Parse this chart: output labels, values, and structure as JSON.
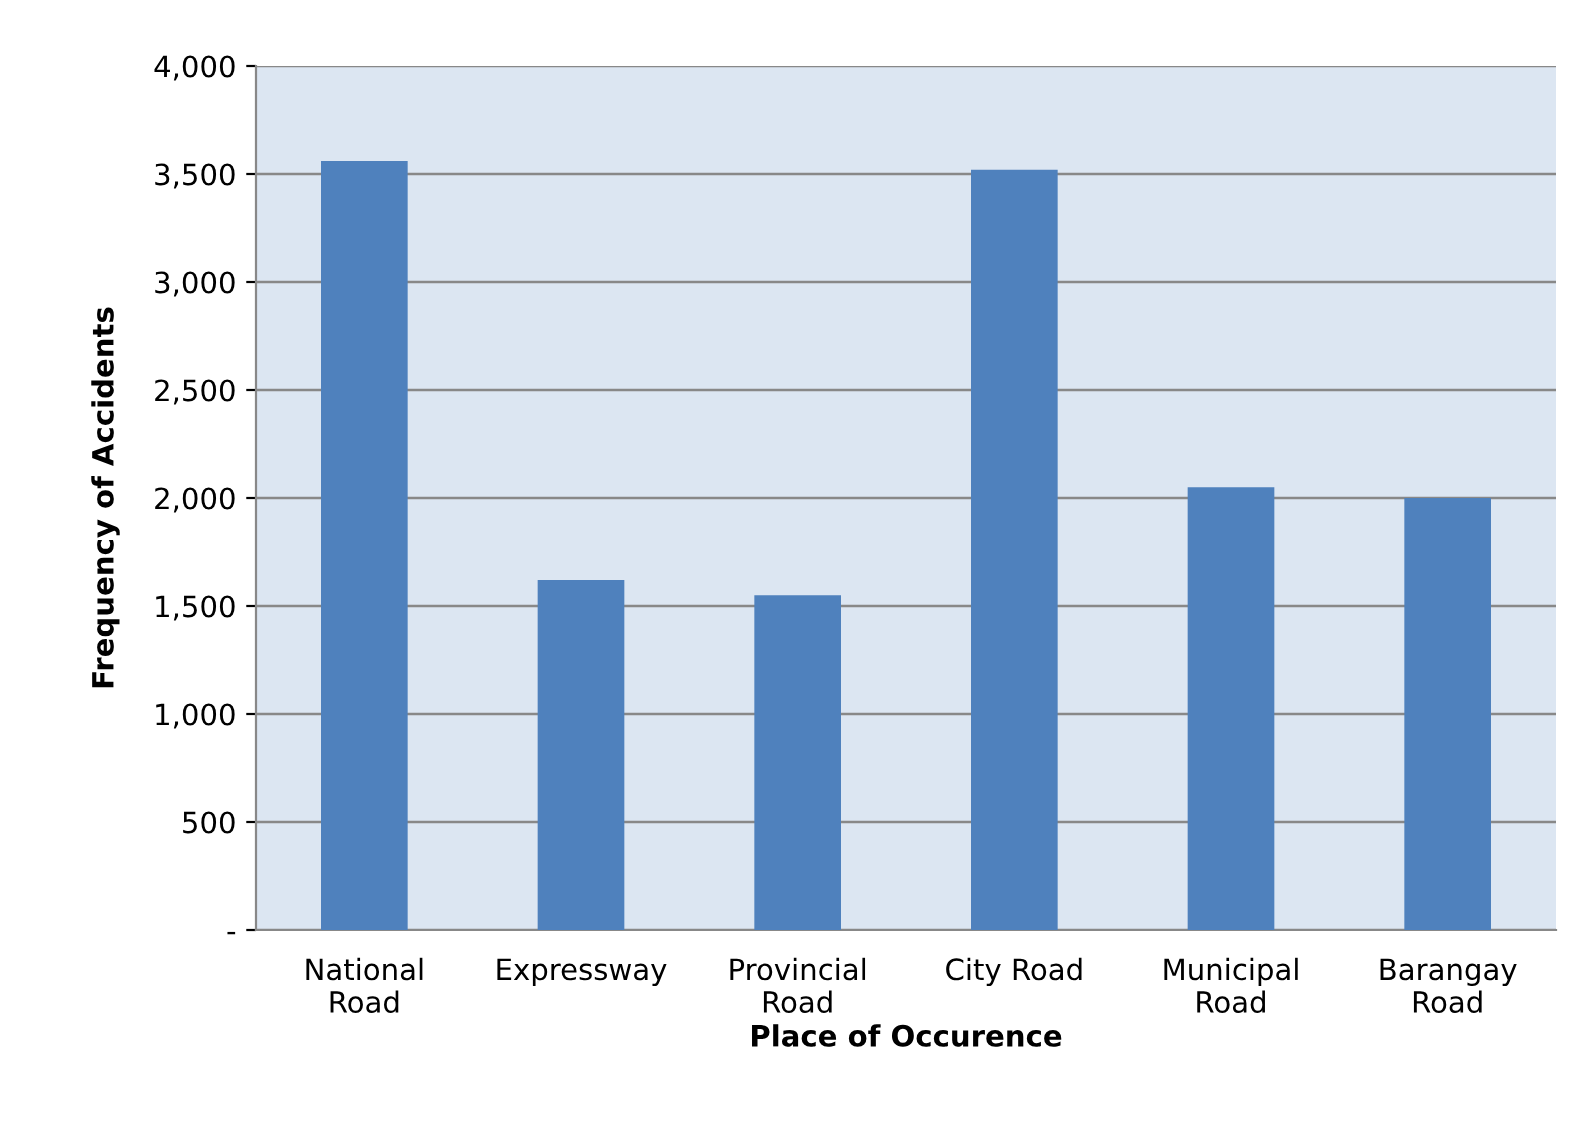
{
  "chart_data": {
    "type": "bar",
    "xlabel": "Place of Occurence",
    "ylabel": "Frequency of Accidents",
    "categories": [
      "National Road",
      "Expressway",
      "Provincial Road",
      "City Road",
      "Municipal Road",
      "Barangay Road"
    ],
    "values": [
      3560,
      1620,
      1550,
      3520,
      2050,
      2000
    ],
    "color": "#4f81bd",
    "ylim": [
      0,
      4000
    ],
    "yticks": [
      {
        "value": 0,
        "label": "-"
      },
      {
        "value": 500,
        "label": "500"
      },
      {
        "value": 1000,
        "label": "1,000"
      },
      {
        "value": 1500,
        "label": "1,500"
      },
      {
        "value": 2000,
        "label": "2,000"
      },
      {
        "value": 2500,
        "label": "2,500"
      },
      {
        "value": 3000,
        "label": "3,000"
      },
      {
        "value": 3500,
        "label": "3,500"
      },
      {
        "value": 4000,
        "label": "4,000"
      }
    ],
    "grid": "y"
  }
}
